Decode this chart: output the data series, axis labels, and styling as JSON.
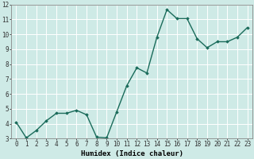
{
  "x": [
    0,
    1,
    2,
    3,
    4,
    5,
    6,
    7,
    8,
    9,
    10,
    11,
    12,
    13,
    14,
    15,
    16,
    17,
    18,
    19,
    20,
    21,
    22,
    23
  ],
  "y": [
    4.1,
    3.05,
    3.55,
    4.2,
    4.7,
    4.7,
    4.9,
    4.6,
    3.1,
    3.05,
    4.8,
    6.55,
    7.75,
    7.4,
    9.8,
    11.65,
    11.05,
    11.05,
    9.7,
    9.1,
    9.5,
    9.5,
    9.8,
    10.45
  ],
  "xlabel": "Humidex (Indice chaleur)",
  "ylim": [
    3,
    12
  ],
  "xlim": [
    -0.5,
    23.5
  ],
  "yticks": [
    3,
    4,
    5,
    6,
    7,
    8,
    9,
    10,
    11,
    12
  ],
  "xticks": [
    0,
    1,
    2,
    3,
    4,
    5,
    6,
    7,
    8,
    9,
    10,
    11,
    12,
    13,
    14,
    15,
    16,
    17,
    18,
    19,
    20,
    21,
    22,
    23
  ],
  "line_color": "#1a6b5a",
  "marker": "D",
  "marker_size": 1.8,
  "bg_color": "#ceeae6",
  "grid_color": "#ffffff",
  "grid_linewidth": 0.7,
  "xlabel_fontsize": 6.5,
  "tick_fontsize": 5.5,
  "line_width": 1.0,
  "spine_color": "#888888"
}
